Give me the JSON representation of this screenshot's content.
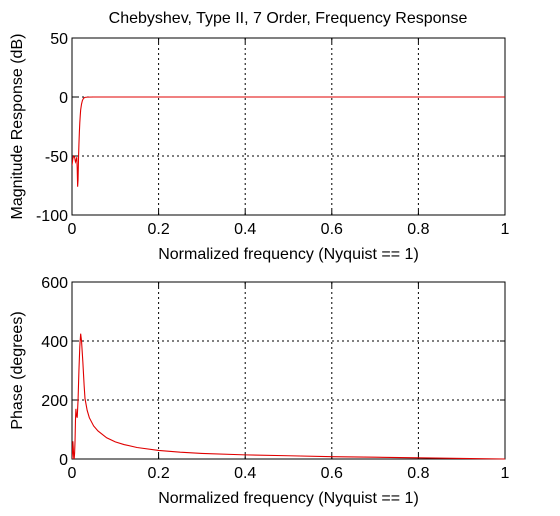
{
  "figure_title": "Chebyshev, Type II, 7 Order, Frequency Response",
  "chart_data": [
    {
      "type": "line",
      "title": "Chebyshev, Type II, 7 Order, Frequency Response",
      "xlabel": "Normalized frequency (Nyquist == 1)",
      "ylabel": "Magnitude Response (dB)",
      "xlim": [
        0,
        1
      ],
      "ylim": [
        -100,
        50
      ],
      "xticks": [
        0,
        0.2,
        0.4,
        0.6,
        0.8,
        1
      ],
      "xtick_labels": [
        "0",
        "0.2",
        "0.4",
        "0.6",
        "0.8",
        "1"
      ],
      "yticks": [
        -100,
        -50,
        0,
        50
      ],
      "ytick_labels": [
        "-100",
        "-50",
        "0",
        "50"
      ],
      "grid": true,
      "color": "#e00000",
      "series": [
        {
          "x": [
            0,
            0.002,
            0.004,
            0.006,
            0.008,
            0.01,
            0.011,
            0.012,
            0.013,
            0.014,
            0.015,
            0.016,
            0.017,
            0.018,
            0.019,
            0.02,
            0.022,
            0.024,
            0.026,
            0.028,
            0.03,
            0.035,
            0.05,
            0.1,
            0.2,
            0.4,
            0.6,
            0.8,
            1.0
          ],
          "y": [
            -58,
            -52,
            -50,
            -51,
            -55,
            -53,
            -51,
            -60,
            -76,
            -70,
            -52,
            -40,
            -30,
            -22,
            -16,
            -11,
            -6,
            -3,
            -1.5,
            -0.7,
            -0.3,
            -0.1,
            0,
            0,
            0,
            0,
            0,
            0,
            0
          ]
        }
      ]
    },
    {
      "type": "line",
      "title": "",
      "xlabel": "Normalized frequency (Nyquist == 1)",
      "ylabel": "Phase (degrees)",
      "xlim": [
        0,
        1
      ],
      "ylim": [
        0,
        600
      ],
      "xticks": [
        0,
        0.2,
        0.4,
        0.6,
        0.8,
        1
      ],
      "xtick_labels": [
        "0",
        "0.2",
        "0.4",
        "0.6",
        "0.8",
        "1"
      ],
      "yticks": [
        0,
        200,
        400,
        600
      ],
      "ytick_labels": [
        "0",
        "200",
        "400",
        "600"
      ],
      "grid": true,
      "color": "#e00000",
      "series": [
        {
          "x": [
            0,
            0.001,
            0.002,
            0.003,
            0.004,
            0.005,
            0.006,
            0.007,
            0.008,
            0.009,
            0.01,
            0.012,
            0.014,
            0.016,
            0.018,
            0.02,
            0.022,
            0.025,
            0.028,
            0.03,
            0.035,
            0.04,
            0.05,
            0.06,
            0.08,
            0.1,
            0.12,
            0.15,
            0.2,
            0.25,
            0.3,
            0.4,
            0.5,
            0.6,
            0.7,
            0.8,
            0.9,
            1.0
          ],
          "y": [
            0,
            20,
            60,
            35,
            5,
            0,
            20,
            60,
            130,
            170,
            150,
            140,
            200,
            300,
            380,
            425,
            400,
            330,
            250,
            205,
            165,
            140,
            112,
            95,
            72,
            58,
            49,
            39,
            29,
            23,
            19,
            14,
            11,
            8,
            6,
            4,
            2,
            0
          ]
        }
      ]
    }
  ]
}
